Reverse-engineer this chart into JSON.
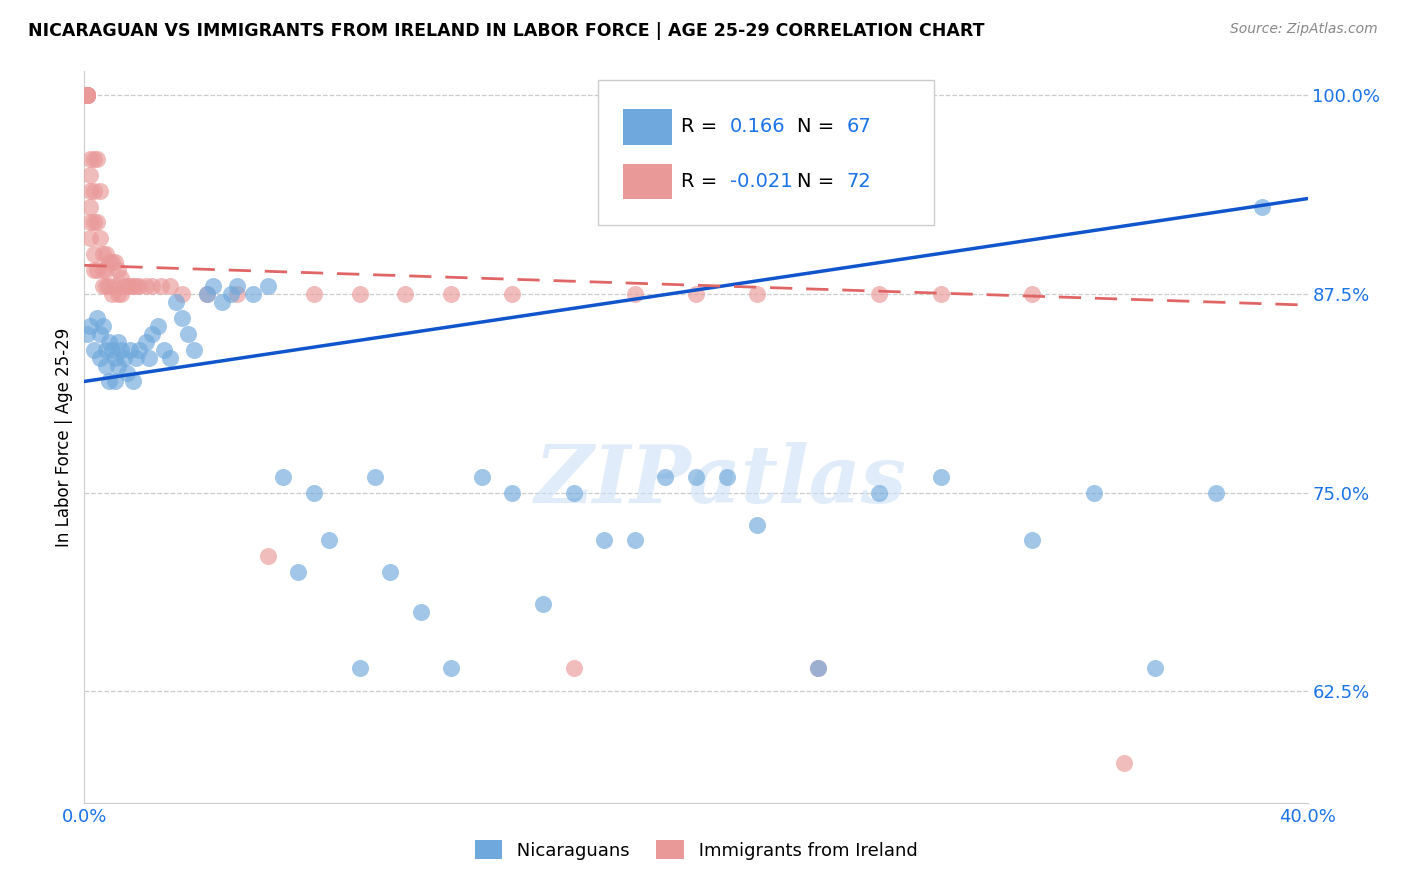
{
  "title": "NICARAGUAN VS IMMIGRANTS FROM IRELAND IN LABOR FORCE | AGE 25-29 CORRELATION CHART",
  "source": "Source: ZipAtlas.com",
  "ylabel": "In Labor Force | Age 25-29",
  "xlim": [
    0.0,
    0.4
  ],
  "ylim": [
    0.555,
    1.015
  ],
  "yticks": [
    0.625,
    0.75,
    0.875,
    1.0
  ],
  "ytick_labels": [
    "62.5%",
    "75.0%",
    "87.5%",
    "100.0%"
  ],
  "xticks": [
    0.0,
    0.05,
    0.1,
    0.15,
    0.2,
    0.25,
    0.3,
    0.35,
    0.4
  ],
  "xtick_labels": [
    "0.0%",
    "",
    "",
    "",
    "",
    "",
    "",
    "",
    "40.0%"
  ],
  "blue_color": "#6fa8dc",
  "pink_color": "#ea9999",
  "blue_line_color": "#1155cc",
  "pink_line_color": "#e06666",
  "legend_r_blue": "0.166",
  "legend_n_blue": "67",
  "legend_r_pink": "-0.021",
  "legend_n_pink": "72",
  "watermark": "ZIPatlas",
  "blue_x": [
    0.001,
    0.002,
    0.003,
    0.004,
    0.005,
    0.005,
    0.006,
    0.007,
    0.007,
    0.008,
    0.008,
    0.009,
    0.01,
    0.01,
    0.011,
    0.011,
    0.012,
    0.013,
    0.014,
    0.015,
    0.016,
    0.017,
    0.018,
    0.02,
    0.021,
    0.022,
    0.024,
    0.026,
    0.028,
    0.03,
    0.032,
    0.034,
    0.036,
    0.04,
    0.042,
    0.045,
    0.048,
    0.05,
    0.055,
    0.06,
    0.065,
    0.07,
    0.075,
    0.08,
    0.09,
    0.095,
    0.1,
    0.11,
    0.12,
    0.13,
    0.14,
    0.15,
    0.16,
    0.17,
    0.18,
    0.19,
    0.2,
    0.21,
    0.22,
    0.24,
    0.26,
    0.28,
    0.31,
    0.33,
    0.35,
    0.37,
    0.385
  ],
  "blue_y": [
    0.85,
    0.855,
    0.84,
    0.86,
    0.85,
    0.835,
    0.855,
    0.84,
    0.83,
    0.845,
    0.82,
    0.84,
    0.835,
    0.82,
    0.845,
    0.83,
    0.84,
    0.835,
    0.825,
    0.84,
    0.82,
    0.835,
    0.84,
    0.845,
    0.835,
    0.85,
    0.855,
    0.84,
    0.835,
    0.87,
    0.86,
    0.85,
    0.84,
    0.875,
    0.88,
    0.87,
    0.875,
    0.88,
    0.875,
    0.88,
    0.76,
    0.7,
    0.75,
    0.72,
    0.64,
    0.76,
    0.7,
    0.675,
    0.64,
    0.76,
    0.75,
    0.68,
    0.75,
    0.72,
    0.72,
    0.76,
    0.76,
    0.76,
    0.73,
    0.64,
    0.75,
    0.76,
    0.72,
    0.75,
    0.64,
    0.75,
    0.93
  ],
  "pink_x": [
    0.001,
    0.001,
    0.001,
    0.001,
    0.001,
    0.001,
    0.001,
    0.001,
    0.001,
    0.001,
    0.001,
    0.001,
    0.002,
    0.002,
    0.002,
    0.002,
    0.002,
    0.002,
    0.003,
    0.003,
    0.003,
    0.003,
    0.003,
    0.004,
    0.004,
    0.004,
    0.005,
    0.005,
    0.006,
    0.006,
    0.006,
    0.007,
    0.007,
    0.007,
    0.008,
    0.008,
    0.009,
    0.009,
    0.01,
    0.01,
    0.011,
    0.011,
    0.012,
    0.012,
    0.013,
    0.014,
    0.015,
    0.016,
    0.017,
    0.018,
    0.02,
    0.022,
    0.025,
    0.028,
    0.032,
    0.04,
    0.05,
    0.06,
    0.075,
    0.09,
    0.105,
    0.12,
    0.14,
    0.16,
    0.18,
    0.2,
    0.22,
    0.24,
    0.26,
    0.28,
    0.31,
    0.34
  ],
  "pink_y": [
    1.0,
    1.0,
    1.0,
    1.0,
    1.0,
    1.0,
    1.0,
    1.0,
    1.0,
    1.0,
    1.0,
    1.0,
    0.96,
    0.95,
    0.94,
    0.93,
    0.92,
    0.91,
    0.96,
    0.94,
    0.92,
    0.9,
    0.89,
    0.96,
    0.92,
    0.89,
    0.94,
    0.91,
    0.9,
    0.89,
    0.88,
    0.9,
    0.89,
    0.88,
    0.895,
    0.88,
    0.895,
    0.875,
    0.895,
    0.88,
    0.89,
    0.875,
    0.885,
    0.875,
    0.88,
    0.88,
    0.88,
    0.88,
    0.88,
    0.88,
    0.88,
    0.88,
    0.88,
    0.88,
    0.875,
    0.875,
    0.875,
    0.71,
    0.875,
    0.875,
    0.875,
    0.875,
    0.875,
    0.64,
    0.875,
    0.875,
    0.875,
    0.64,
    0.875,
    0.875,
    0.875,
    0.58
  ]
}
